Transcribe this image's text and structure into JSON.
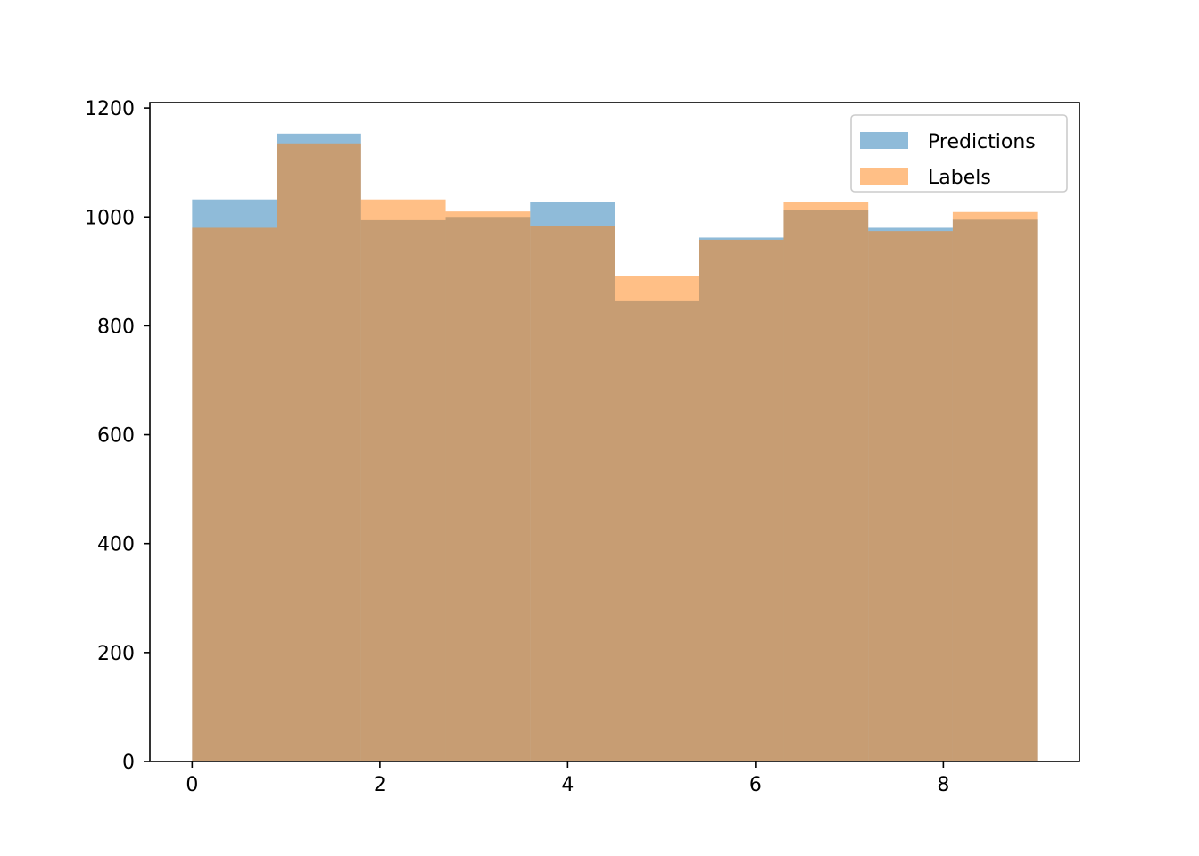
{
  "chart_data": {
    "type": "bar",
    "subtype": "overlapping-histogram",
    "title": "",
    "xlabel": "",
    "ylabel": "",
    "bin_edges": [
      0,
      0.9,
      1.8,
      2.7,
      3.6,
      4.5,
      5.4,
      6.3,
      7.2,
      8.1,
      9.0
    ],
    "xlim": [
      -0.45,
      9.45
    ],
    "ylim": [
      0,
      1210
    ],
    "x_ticks": [
      0,
      2,
      4,
      6,
      8
    ],
    "y_ticks": [
      0,
      200,
      400,
      600,
      800,
      1000,
      1200
    ],
    "grid": false,
    "legend_position": "top-right",
    "series": [
      {
        "name": "Predictions",
        "color": "#1f77b4",
        "opacity": 0.5,
        "values": [
          1032,
          1153,
          994,
          1000,
          1027,
          845,
          962,
          1012,
          980,
          995
        ]
      },
      {
        "name": "Labels",
        "color": "#ff7f0e",
        "opacity": 0.5,
        "values": [
          980,
          1135,
          1032,
          1010,
          983,
          892,
          958,
          1028,
          974,
          1009
        ]
      }
    ]
  }
}
